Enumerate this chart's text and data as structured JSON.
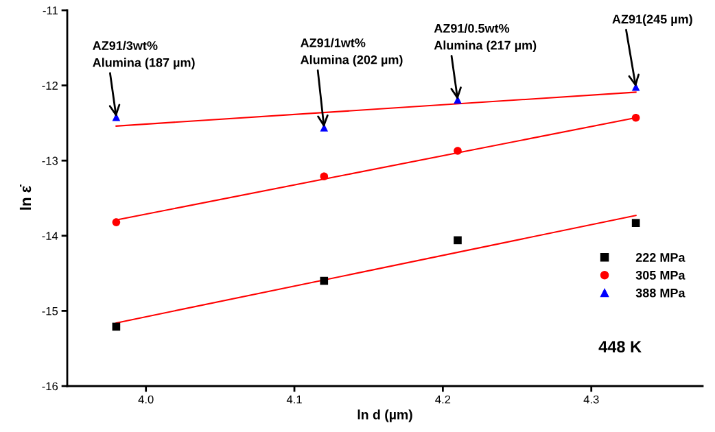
{
  "chart_data": {
    "type": "scatter",
    "xlabel": "ln d (µm)",
    "ylabel": "ln ε̇",
    "xlim": [
      3.947,
      4.375
    ],
    "ylim": [
      -16,
      -11
    ],
    "xticks": [
      {
        "value": 4.0,
        "label": "4.0"
      },
      {
        "value": 4.1,
        "label": "4.1"
      },
      {
        "value": 4.2,
        "label": "4.2"
      },
      {
        "value": 4.3,
        "label": "4.3"
      }
    ],
    "yticks": [
      -16,
      -15,
      -14,
      -13,
      -12,
      -11
    ],
    "grid": false,
    "legend": "lower right",
    "series": [
      {
        "name": "222 MPa",
        "color": "#000000",
        "marker": "square",
        "x": [
          3.98,
          4.12,
          4.21,
          4.33
        ],
        "values": [
          -15.21,
          -14.6,
          -14.06,
          -13.83
        ]
      },
      {
        "name": "305 MPa",
        "color": "#ff0000",
        "marker": "circle",
        "x": [
          3.98,
          4.12,
          4.21,
          4.33
        ],
        "values": [
          -13.82,
          -13.21,
          -12.87,
          -12.43
        ]
      },
      {
        "name": "388 MPa",
        "color": "#0000ff",
        "marker": "triangle",
        "x": [
          3.98,
          4.12,
          4.21,
          4.33
        ],
        "values": [
          -12.42,
          -12.56,
          -12.19,
          -12.02
        ]
      },
      {
        "type": "line",
        "color": "#ff0000",
        "line_style": "solid",
        "marker": "none",
        "x": [
          3.98,
          4.33
        ],
        "values": [
          -15.16,
          -13.73
        ]
      },
      {
        "type": "line",
        "color": "#ff0000",
        "line_style": "solid",
        "marker": "none",
        "x": [
          3.98,
          4.33
        ],
        "values": [
          -13.79,
          -12.43
        ]
      },
      {
        "type": "line",
        "color": "#ff0000",
        "line_style": "solid",
        "marker": "none",
        "x": [
          3.98,
          4.33
        ],
        "values": [
          -12.54,
          -12.09
        ]
      }
    ],
    "annotations": [
      {
        "text": "AZ91/3wt%\nAlumina (187 µm)",
        "x": 3.98,
        "y": -12.42
      },
      {
        "text": "AZ91/1wt%\nAlumina (202 µm)",
        "x": 4.12,
        "y": -12.56
      },
      {
        "text": "AZ91/0.5wt%\nAlumina (217 µm)",
        "x": 4.21,
        "y": -12.19
      },
      {
        "text": "AZ91(245 µm)",
        "x": 4.33,
        "y": -12.02
      },
      "448 K"
    ]
  }
}
